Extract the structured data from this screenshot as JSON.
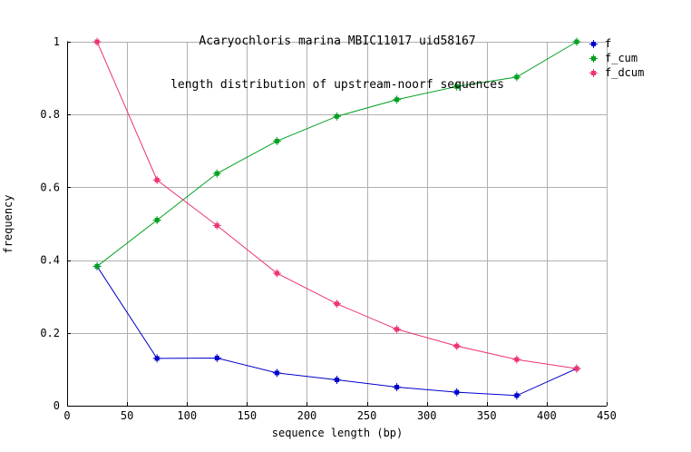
{
  "title": {
    "line1": "Acaryochloris marina MBIC11017 uid58167",
    "line2": "length distribution of upstream-noorf sequences"
  },
  "axes": {
    "x_label": "sequence length (bp)",
    "y_label": "frequency"
  },
  "colors": {
    "axis": "#000000",
    "grid": "#b0b0b0",
    "background": "#ffffff",
    "text": "#000000"
  },
  "chart_data": {
    "type": "line",
    "title": "Acaryochloris marina MBIC11017 uid58167 — length distribution of upstream-noorf sequences",
    "xlabel": "sequence length (bp)",
    "ylabel": "frequency",
    "xlim": [
      0,
      450
    ],
    "ylim": [
      0,
      1
    ],
    "x_ticks": [
      0,
      50,
      100,
      150,
      200,
      250,
      300,
      350,
      400,
      450
    ],
    "y_ticks": [
      0,
      0.2,
      0.4,
      0.6,
      0.8,
      1
    ],
    "grid": true,
    "legend_position": "outside-top-right",
    "x": [
      25,
      75,
      125,
      175,
      225,
      275,
      325,
      375,
      425
    ],
    "series": [
      {
        "name": "f",
        "color": "#0000cc",
        "values": [
          0.383,
          0.13,
          0.131,
          0.09,
          0.071,
          0.051,
          0.037,
          0.028,
          0.102
        ]
      },
      {
        "name": "f_cum",
        "color": "#00a020",
        "values": [
          0.383,
          0.51,
          0.638,
          0.727,
          0.795,
          0.841,
          0.877,
          0.903,
          1.0
        ]
      },
      {
        "name": "f_dcum",
        "color": "#ee3570",
        "values": [
          1.0,
          0.62,
          0.495,
          0.364,
          0.28,
          0.21,
          0.164,
          0.127,
          0.102
        ]
      }
    ]
  }
}
